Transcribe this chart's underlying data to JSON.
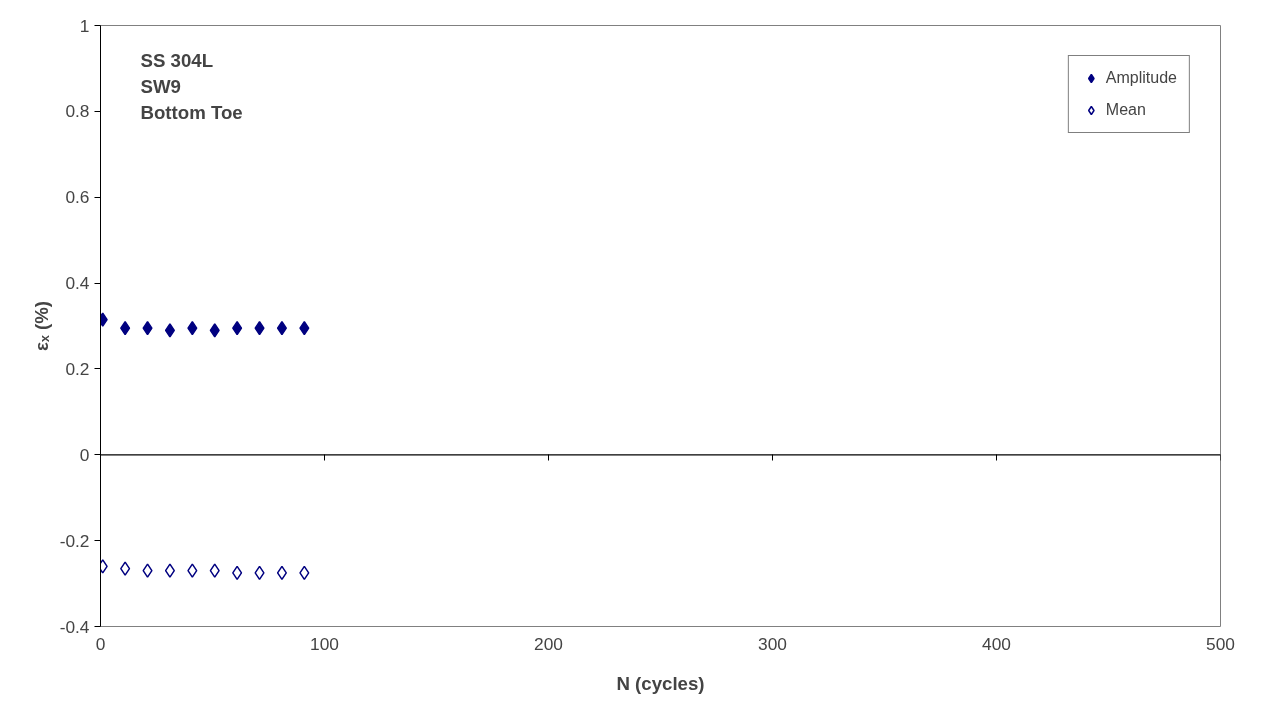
{
  "chart_data": {
    "type": "scatter",
    "xlabel": "N (cycles)",
    "ylabel": "εₓ (%)",
    "x": [
      1,
      11,
      21,
      31,
      41,
      51,
      61,
      71,
      81,
      91
    ],
    "series": [
      {
        "name": "Amplitude",
        "color": "#000080",
        "marker": "diamond",
        "values": [
          0.315,
          0.295,
          0.295,
          0.29,
          0.295,
          0.29,
          0.295,
          0.295,
          0.295,
          0.295
        ]
      },
      {
        "name": "Mean",
        "color": "#000080",
        "marker": "diamond",
        "values": [
          -0.26,
          -0.265,
          -0.27,
          -0.27,
          -0.27,
          -0.27,
          -0.275,
          -0.275,
          -0.275,
          -0.275
        ]
      }
    ],
    "annotations": [
      "SS 304L",
      "SW9",
      "Bottom Toe"
    ],
    "xlim": [
      0,
      500
    ],
    "xticks": [
      0,
      100,
      200,
      300,
      400,
      500
    ],
    "ylim": [
      -0.4,
      1
    ],
    "yticks": [
      -0.4,
      -0.2,
      0,
      0.2,
      0.4,
      0.6,
      0.8,
      1
    ],
    "ref_lines": [
      {
        "axis": "y",
        "value": 0,
        "color": "#000000"
      }
    ],
    "grid": false,
    "legend": "top right"
  }
}
